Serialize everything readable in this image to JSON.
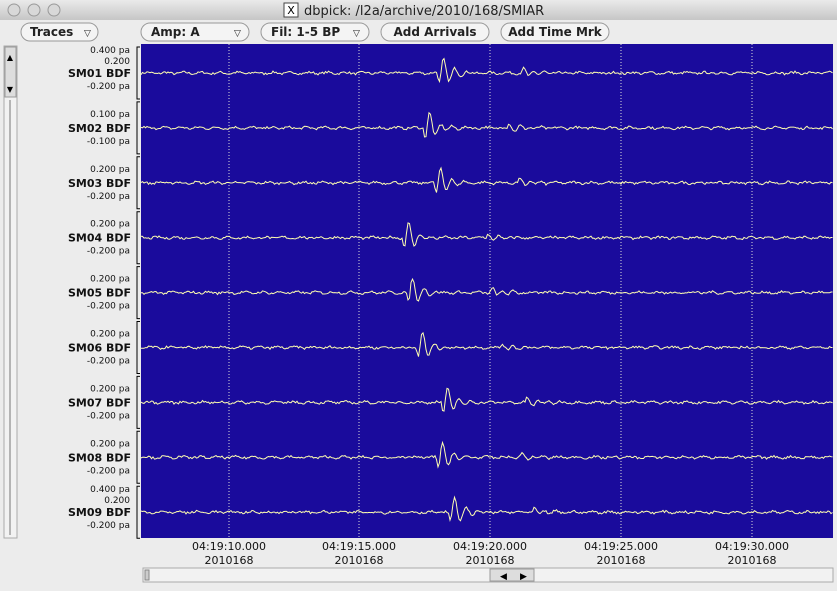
{
  "window": {
    "title": "dbpick: /l2a/archive/2010/168/SMIAR"
  },
  "toolbar": {
    "traces": "Traces",
    "amp": "Amp: A",
    "filter": "Fil: 1-5 BP",
    "add_arrivals": "Add Arrivals",
    "add_time_mark": "Add Time Mrk"
  },
  "traces": [
    {
      "station": "SM01 BDF",
      "scale_labels": [
        "0.400 pa",
        "0.200",
        "-0.200 pa"
      ]
    },
    {
      "station": "SM02 BDF",
      "scale_labels": [
        "0.100 pa",
        "-0.100 pa"
      ]
    },
    {
      "station": "SM03 BDF",
      "scale_labels": [
        "0.200 pa",
        "-0.200 pa"
      ]
    },
    {
      "station": "SM04 BDF",
      "scale_labels": [
        "0.200 pa",
        "-0.200 pa"
      ]
    },
    {
      "station": "SM05 BDF",
      "scale_labels": [
        "0.200 pa",
        "-0.200 pa"
      ]
    },
    {
      "station": "SM06 BDF",
      "scale_labels": [
        "0.200 pa",
        "-0.200 pa"
      ]
    },
    {
      "station": "SM07 BDF",
      "scale_labels": [
        "0.200 pa",
        "-0.200 pa"
      ]
    },
    {
      "station": "SM08 BDF",
      "scale_labels": [
        "0.200 pa",
        "-0.200 pa"
      ]
    },
    {
      "station": "SM09 BDF",
      "scale_labels": [
        "0.400 pa",
        "0.200",
        "-0.200 pa"
      ]
    }
  ],
  "time_axis": [
    {
      "time": "04:19:10.000",
      "date": "2010168"
    },
    {
      "time": "04:19:15.000",
      "date": "2010168"
    },
    {
      "time": "04:19:20.000",
      "date": "2010168"
    },
    {
      "time": "04:19:25.000",
      "date": "2010168"
    },
    {
      "time": "04:19:30.000",
      "date": "2010168"
    }
  ]
}
